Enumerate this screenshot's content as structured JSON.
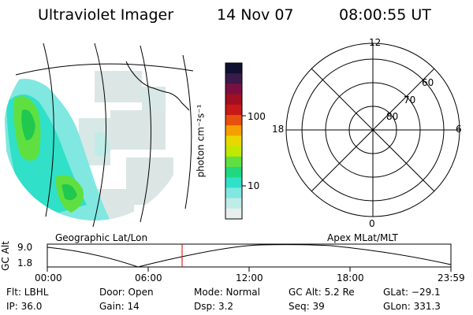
{
  "header": {
    "instrument": "Ultraviolet Imager",
    "date": "14 Nov 07",
    "time": "08:00:55 UT"
  },
  "colorbar": {
    "label": "photon cm⁻²s⁻¹",
    "ticks": [
      "100",
      "10"
    ],
    "colors": [
      "#101030",
      "#3a1a4a",
      "#7a1040",
      "#a01020",
      "#c81818",
      "#e85010",
      "#f5a000",
      "#e8d800",
      "#c0e800",
      "#60e040",
      "#20d880",
      "#30e0c8",
      "#80e8e0",
      "#c0ece8",
      "#e8eeee"
    ]
  },
  "polar_plot": {
    "mlt_labels": {
      "top": "12",
      "left": "18",
      "right": "6",
      "bottom": "0"
    },
    "lat_labels": [
      "60",
      "70",
      "80"
    ]
  },
  "map_panel": {
    "caption": "Geographic Lat/Lon"
  },
  "altitude_plot": {
    "axis_title": "GC Alt",
    "y_ticks": [
      "9.0",
      "1.8"
    ],
    "right_caption": "Apex MLat/MLT",
    "x_ticks": [
      "00:00",
      "06:00",
      "12:00",
      "18:00",
      "23:59"
    ],
    "current_time_fraction": 0.334,
    "marker_color": "#cc0000"
  },
  "status": {
    "filter": "Flt: LBHL",
    "ip": "IP: 36.0",
    "door": "Door: Open",
    "gain": "Gain: 14",
    "mode": "Mode: Normal",
    "dsp": "Dsp:      3.2",
    "gc_alt": "GC Alt: 5.2 Re",
    "seq": "Seq: 39",
    "glat": "GLat: −29.1",
    "glon": "GLon: 331.3"
  }
}
